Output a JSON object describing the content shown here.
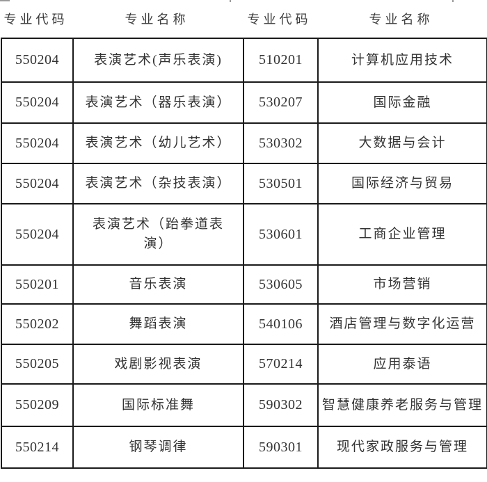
{
  "header": {
    "columns": [
      "专业代码",
      "专业名称",
      "专业代码",
      "专业名称"
    ]
  },
  "table": {
    "rows": [
      {
        "code_left": "550204",
        "name_left": "表演艺术(声乐表演)",
        "code_right": "510201",
        "name_right": "计算机应用技术"
      },
      {
        "code_left": "550204",
        "name_left": "表演艺术（器乐表演）",
        "code_right": "530207",
        "name_right": "国际金融"
      },
      {
        "code_left": "550204",
        "name_left": "表演艺术（幼儿艺术）",
        "code_right": "530302",
        "name_right": "大数据与会计"
      },
      {
        "code_left": "550204",
        "name_left": "表演艺术（杂技表演）",
        "code_right": "530501",
        "name_right": "国际经济与贸易"
      },
      {
        "code_left": "550204",
        "name_left": "表演艺术（跆拳道表演）",
        "code_right": "530601",
        "name_right": "工商企业管理"
      },
      {
        "code_left": "550201",
        "name_left": "音乐表演",
        "code_right": "530605",
        "name_right": "市场营销"
      },
      {
        "code_left": "550202",
        "name_left": "舞蹈表演",
        "code_right": "540106",
        "name_right": "酒店管理与数字化运营"
      },
      {
        "code_left": "550205",
        "name_left": "戏剧影视表演",
        "code_right": "570214",
        "name_right": "应用泰语"
      },
      {
        "code_left": "550209",
        "name_left": "国际标准舞",
        "code_right": "590302",
        "name_right": "智慧健康养老服务与管理"
      },
      {
        "code_left": "550214",
        "name_left": "钢琴调律",
        "code_right": "590301",
        "name_right": "现代家政服务与管理"
      }
    ]
  },
  "colors": {
    "text": "#333333",
    "border": "#1a1a1a",
    "background": "#ffffff"
  }
}
